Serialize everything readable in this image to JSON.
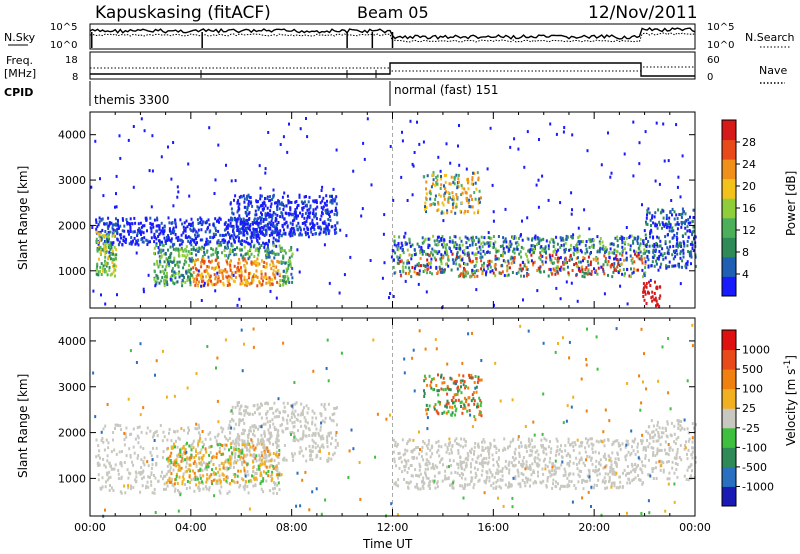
{
  "header": {
    "station": "Kapuskasing (fitACF)",
    "beam": "Beam 05",
    "date": "12/Nov/2011"
  },
  "summary_panels": {
    "nsky_label": "N.Sky",
    "nsky_ticks": [
      "10^5",
      "10^0"
    ],
    "nsearch_label": "N.Search",
    "nsearch_ticks": [
      "10^5",
      "10^0"
    ],
    "freq_label_1": "Freq.",
    "freq_label_2": "[MHz]",
    "freq_ticks": [
      "18",
      "8"
    ],
    "nave_label": "Nave",
    "nave_ticks": [
      "60",
      "0"
    ],
    "cpid_label": "CPID",
    "cpid_first": "themis 3300",
    "cpid_second": "normal (fast) 151"
  },
  "colors": {
    "power_scale": [
      "#1a1aff",
      "#1f5fb4",
      "#2e8b57",
      "#4cb05a",
      "#8fce3a",
      "#f2c21b",
      "#f0901a",
      "#e84a1a",
      "#d61a1a"
    ],
    "velocity_scale": [
      "#1a1ab4",
      "#2a6fc0",
      "#2e8b57",
      "#3ec03e",
      "#c8c8c0",
      "#f0b020",
      "#f08010",
      "#e84a1a",
      "#e01010"
    ],
    "ground_scatter": "#c8c8c0"
  },
  "chart_data": [
    {
      "type": "heatmap",
      "title": "",
      "ylabel": "Slant Range [km]",
      "colorbar_label": "Power [dB]",
      "colorbar_ticks": [
        "4",
        "8",
        "12",
        "16",
        "20",
        "24",
        "28"
      ],
      "xlim_hours": [
        0,
        24
      ],
      "ylim_km": [
        180,
        4500
      ],
      "yticks": [
        "1000",
        "2000",
        "3000",
        "4000"
      ],
      "grid": false
    },
    {
      "type": "heatmap",
      "title": "",
      "ylabel": "Slant Range [km]",
      "colorbar_label": "Velocity [m s",
      "colorbar_label_sup": "-1",
      "colorbar_label_end": "]",
      "colorbar_ticks": [
        "-1000",
        "-500",
        "-100",
        "-25",
        "25",
        "100",
        "500",
        "1000"
      ],
      "xlim_hours": [
        0,
        24
      ],
      "ylim_km": [
        180,
        4500
      ],
      "yticks": [
        "1000",
        "2000",
        "3000",
        "4000"
      ],
      "xlabel": "Time UT",
      "xticks": [
        "00:00",
        "04:00",
        "08:00",
        "12:00",
        "16:00",
        "20:00",
        "00:00"
      ],
      "grid": false
    }
  ]
}
